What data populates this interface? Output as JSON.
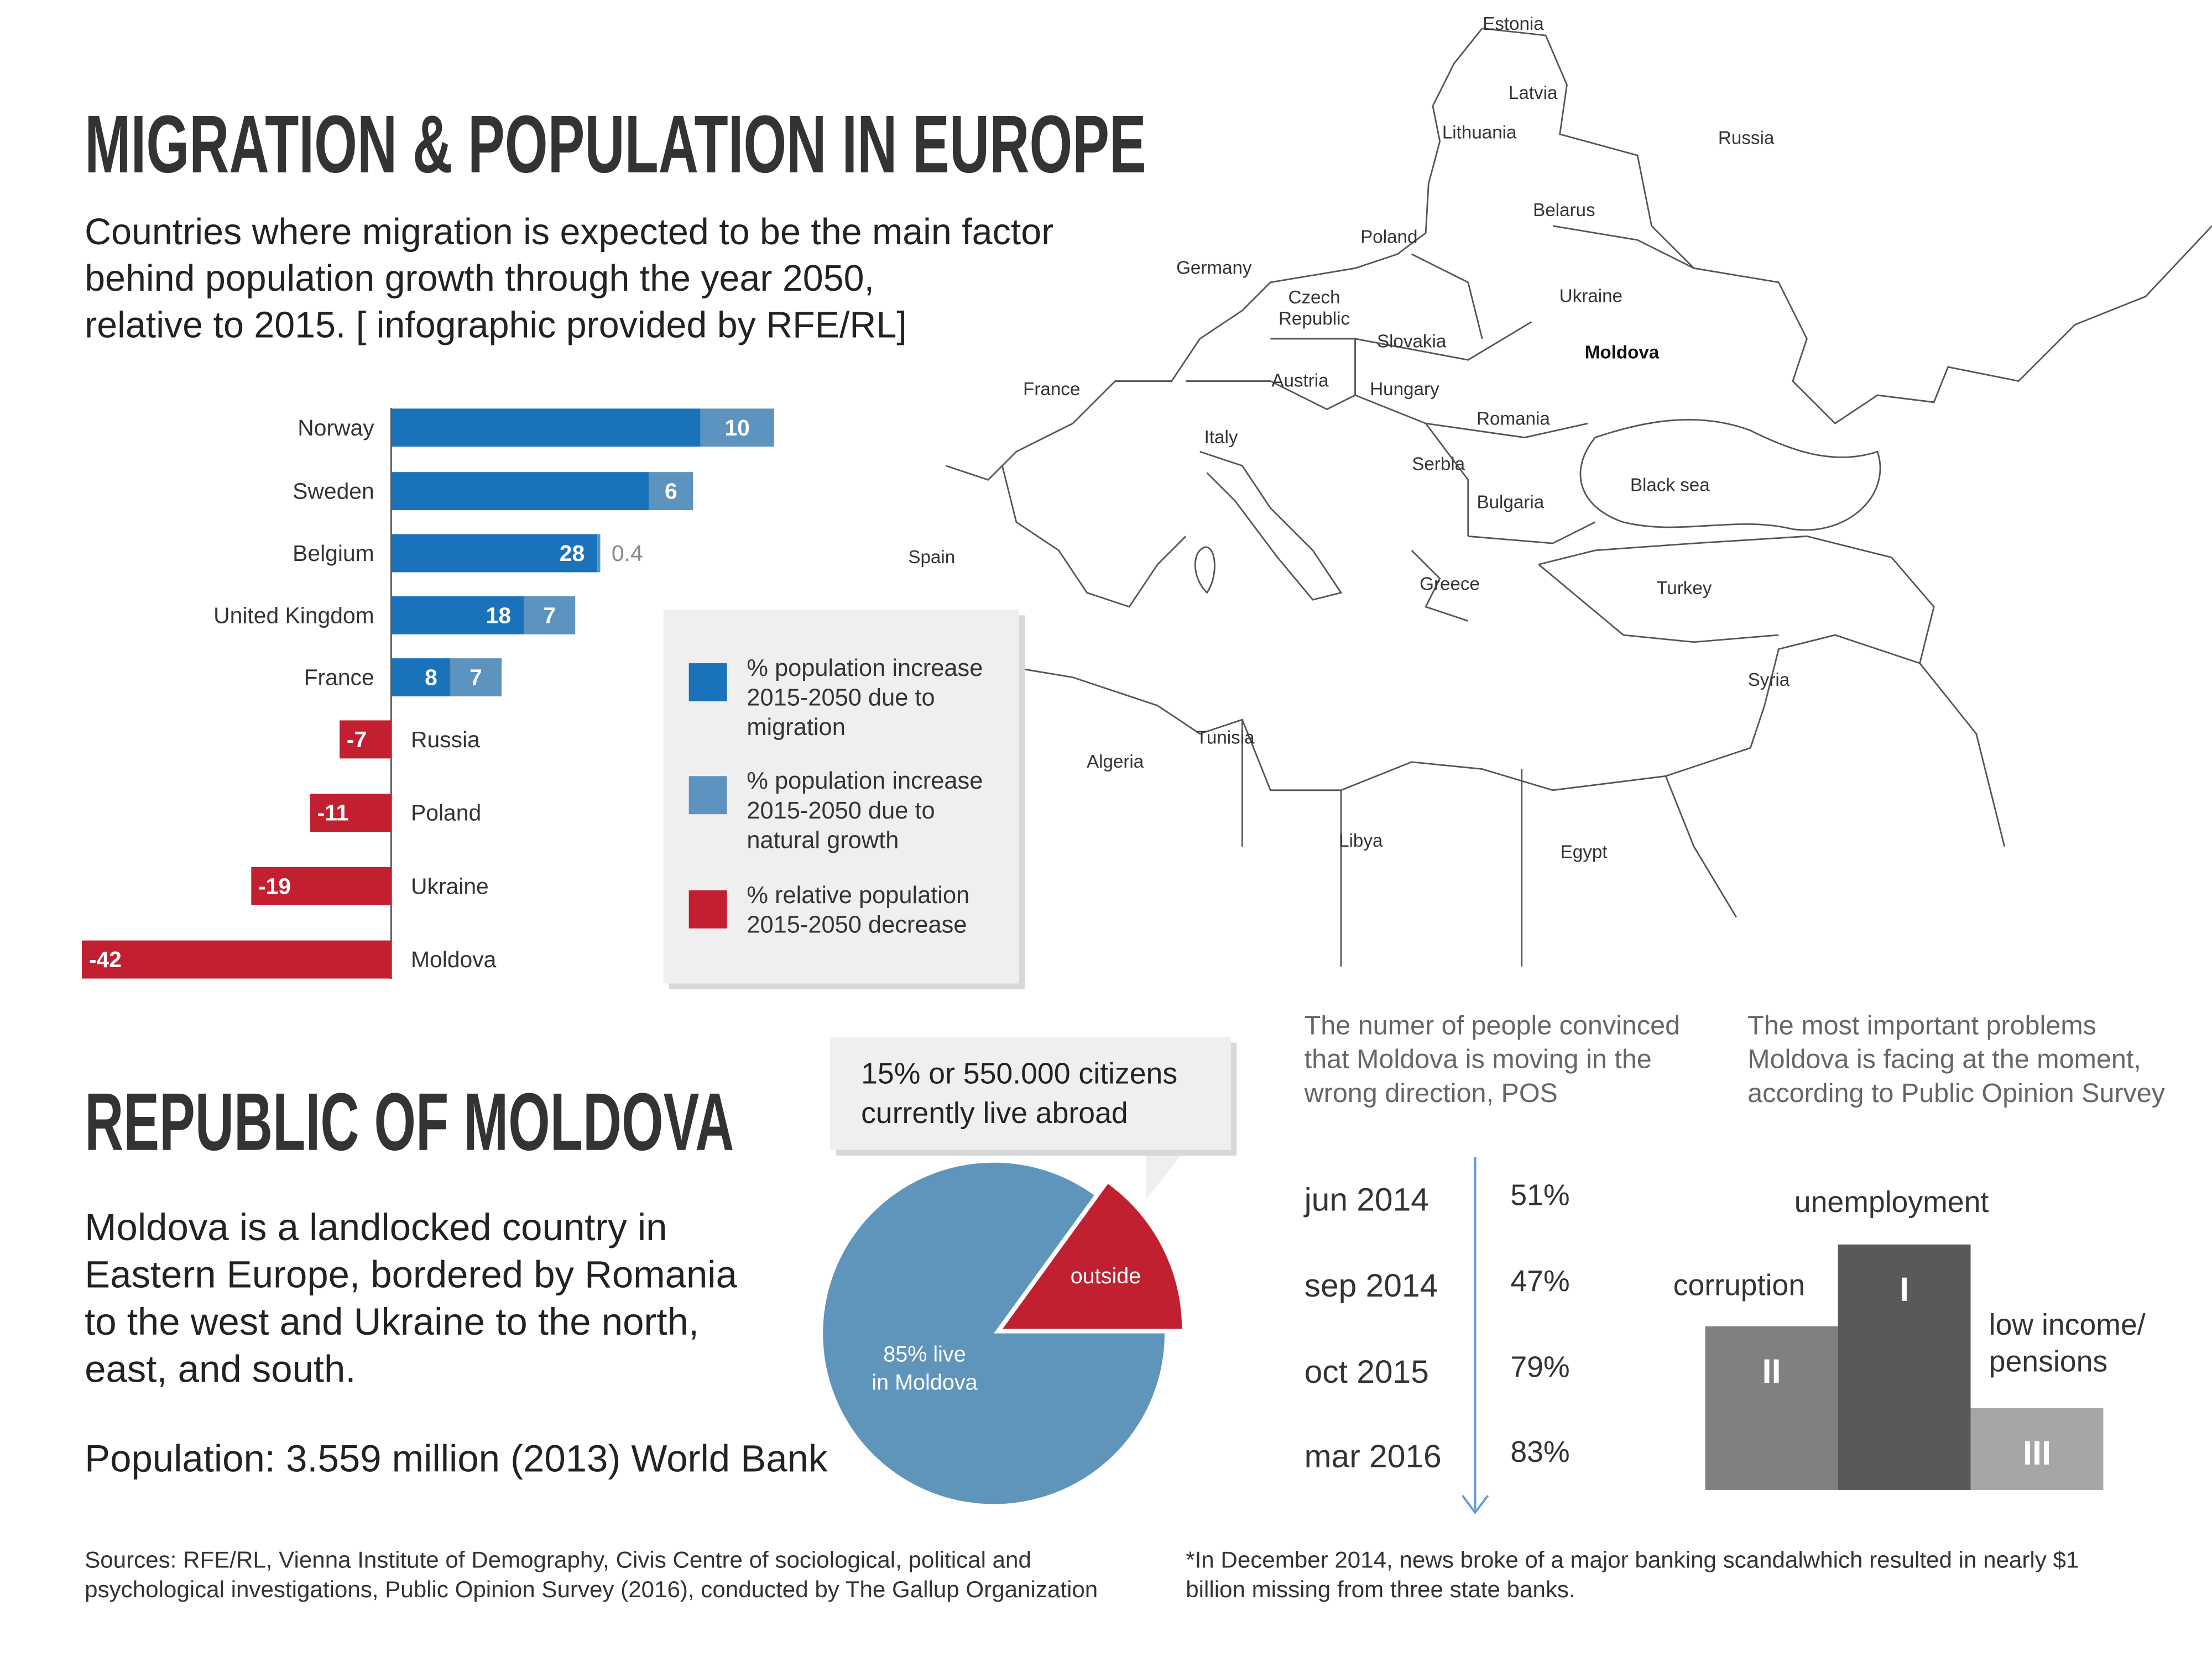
{
  "title": "MIGRATION & POPULATION IN EUROPE",
  "subtitle": [
    "Countries where migration is expected to be the main factor",
    "behind population growth through the year 2050,",
    "relative to 2015. [ infographic provided by RFE/RL]"
  ],
  "chart_data": [
    {
      "type": "bar",
      "orientation": "horizontal",
      "categories": [
        "Norway",
        "Sweden",
        "Belgium",
        "United Kingdom",
        "France",
        "Russia",
        "Poland",
        "Ukraine",
        "Moldova"
      ],
      "series": [
        {
          "name": "% population increase 2015-2050 due to migration",
          "color": "#1a73ba",
          "values": [
            42,
            35,
            28,
            18,
            8,
            null,
            null,
            null,
            null
          ],
          "value_labels": [
            null,
            null,
            "28",
            "18",
            "8",
            null,
            null,
            null,
            null
          ]
        },
        {
          "name": "% population increase 2015-2050 due to natural growth",
          "color": "#5d93bf",
          "values": [
            10,
            6,
            0.4,
            7,
            7,
            null,
            null,
            null,
            null
          ],
          "value_labels": [
            "10",
            "6",
            "0.4",
            "7",
            "7",
            null,
            null,
            null,
            null
          ]
        },
        {
          "name": "% relative population 2015-2050 decrease",
          "color": "#c21f30",
          "values": [
            null,
            null,
            null,
            null,
            null,
            -7,
            -11,
            -19,
            -42
          ],
          "value_labels": [
            null,
            null,
            null,
            null,
            null,
            "-7",
            "-11",
            "-19",
            "-42"
          ]
        }
      ],
      "xlim": [
        -42,
        55
      ],
      "legend": "right"
    },
    {
      "type": "pie",
      "values": [
        85,
        15
      ],
      "colors": [
        "#5f95bb",
        "#c0202f"
      ],
      "value_labels": [
        [
          "85% live",
          "in Moldova"
        ],
        [
          "outside"
        ]
      ],
      "annotation": [
        "15% or 550.000 citizens",
        "currently live abroad"
      ]
    },
    {
      "type": "timeline",
      "title": [
        "The numer of people convinced",
        "that Moldova is moving in the",
        "wrong direction, POS"
      ],
      "categories": [
        "jun 2014",
        "sep 2014",
        "oct 2015",
        "mar 2016"
      ],
      "values": [
        51,
        47,
        79,
        83
      ],
      "value_labels": [
        "51%",
        "47%",
        "79%",
        "83%"
      ],
      "color": "#5b9bd5"
    },
    {
      "type": "podium",
      "title": [
        "The most important problems",
        "Moldova is facing at the moment,",
        "according to Public Opinion Survey"
      ],
      "categories": [
        [
          "unemployment"
        ],
        [
          "corruption"
        ],
        [
          "low income/",
          "pensions"
        ]
      ],
      "values": [
        1,
        2,
        3
      ],
      "value_labels": [
        "I",
        "II",
        "III"
      ],
      "colors": [
        "#59595b",
        "#808082",
        "#a6a6a8"
      ]
    }
  ],
  "map": {
    "labels": [
      [
        "Estonia"
      ],
      [
        "Latvia"
      ],
      [
        "Lithuania"
      ],
      [
        "Russia"
      ],
      [
        "Belarus"
      ],
      [
        "Poland"
      ],
      [
        "Germany"
      ],
      [
        "Ukraine"
      ],
      [
        "Czech",
        "Republic"
      ],
      [
        "Slovakia"
      ],
      [
        "Moldova"
      ],
      [
        "France"
      ],
      [
        "Austria"
      ],
      [
        "Hungary"
      ],
      [
        "Romania"
      ],
      [
        "Italy"
      ],
      [
        "Serbia"
      ],
      [
        "Black sea"
      ],
      [
        "Bulgaria"
      ],
      [
        "Spain"
      ],
      [
        "Greece"
      ],
      [
        "Turkey"
      ],
      [
        "Syria"
      ],
      [
        "Tunisia"
      ],
      [
        "Algeria"
      ],
      [
        "Libya"
      ],
      [
        "Egypt"
      ]
    ],
    "highlight_color": "#c0202f"
  },
  "moldova": {
    "title": "REPUBLIC OF MOLDOVA",
    "description": [
      "Moldova is a landlocked country in",
      "Eastern Europe, bordered by Romania",
      "to the west and Ukraine to the north,",
      "east, and south."
    ],
    "population": "Population: 3.559 million (2013) World Bank"
  },
  "sources": [
    "Sources: RFE/RL, Vienna Institute of Demography, Civis Centre of sociological, political and",
    "psychological investigations, Public Opinion Survey (2016), conducted by The Gallup Organization"
  ],
  "note": [
    "*In December 2014, news broke of a major banking scandalwhich resulted in nearly $1",
    "billion missing from three state banks."
  ]
}
